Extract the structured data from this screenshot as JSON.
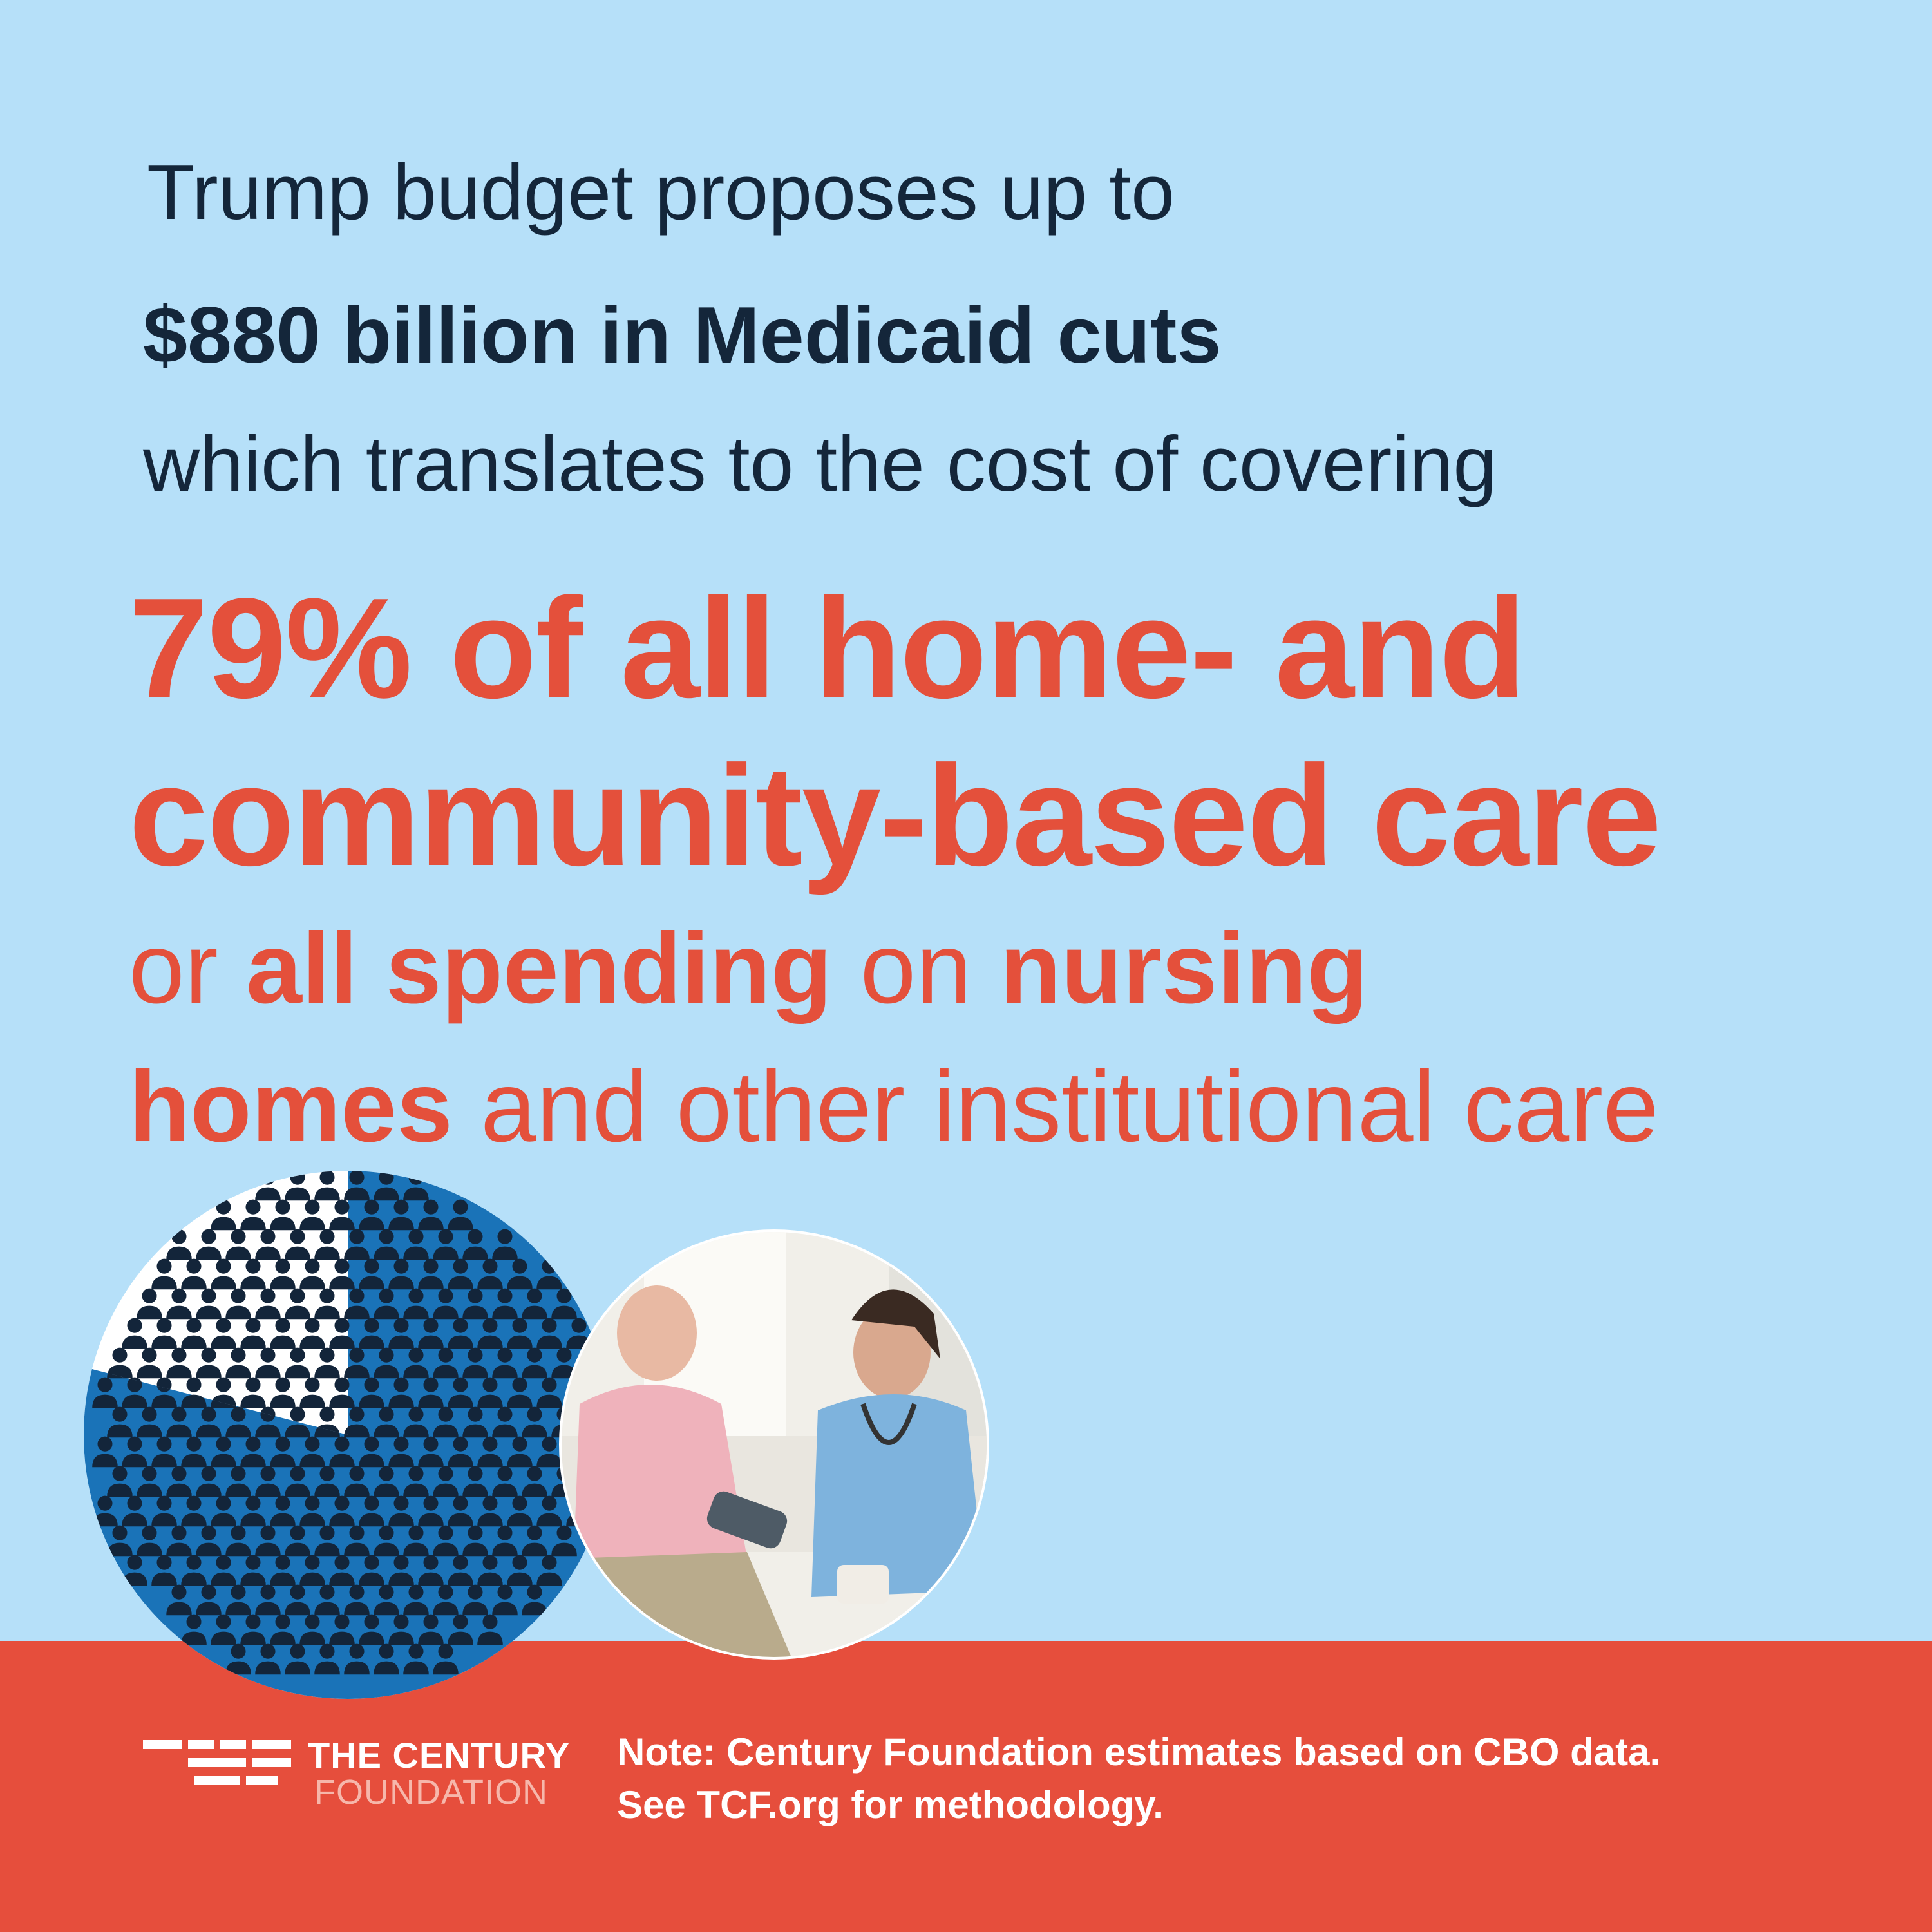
{
  "headline": {
    "line1": "Trump budget proposes up to",
    "line2": "$880 billion in Medicaid cuts",
    "line3": "which translates to the cost of covering",
    "line4": "79% of all home- and",
    "line5": "community-based care",
    "line6_a": "or ",
    "line6_b": "all spending",
    "line6_c": " on ",
    "line6_d": "nursing",
    "line7_a": "homes",
    "line7_b": " and other institutional care"
  },
  "pictogram": {
    "share_covered": 0.79,
    "icon": "person-icon"
  },
  "photo": {
    "subject": "nurse-measuring-blood-pressure"
  },
  "footer": {
    "logo_line1": "THE CENTURY",
    "logo_line2": "FOUNDATION",
    "note_line1": "Note: Century Foundation estimates based on CBO data.",
    "note_line2": "See TCF.org for methodology."
  },
  "colors": {
    "background": "#b6e0f9",
    "navy": "#14263a",
    "coral": "#e4503b",
    "blue": "#1a73b8",
    "footer": "#e64e3c"
  }
}
